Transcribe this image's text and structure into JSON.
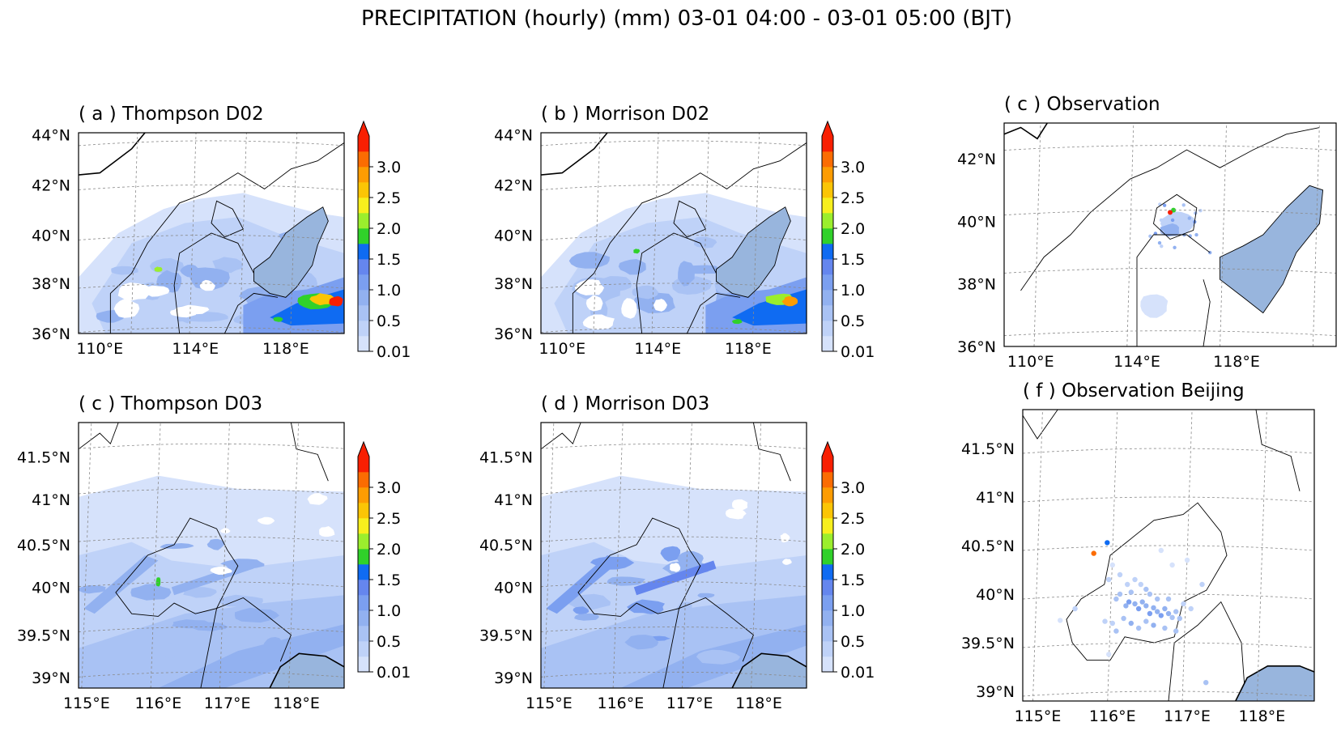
{
  "figure": {
    "title": "PRECIPITATION (hourly) (mm) 03-01 04:00 - 03-01 05:00 (BJT)"
  },
  "colors": {
    "water": "#98b5dd",
    "levels": [
      "#d6e2fb",
      "#bfd2f8",
      "#a9c2f4",
      "#92b1f0",
      "#7b9ff0",
      "#6586ee",
      "#0f6bf2",
      "#30d12a",
      "#9bee2d",
      "#f7ef1d",
      "#fbc505",
      "#fd9c02",
      "#fb6c02",
      "#f81f02"
    ]
  },
  "colorbar": {
    "ticks": [
      "0.01",
      "0.5",
      "1.0",
      "1.5",
      "2.0",
      "2.5",
      "3.0"
    ]
  },
  "chart_data": [
    {
      "id": "a",
      "type": "heatmap",
      "title": "( a ) Thompson D02",
      "x_ticks": [
        "110°E",
        "114°E",
        "118°E"
      ],
      "y_ticks": [
        "36°N",
        "38°N",
        "40°N",
        "42°N",
        "44°N"
      ],
      "xlim": [
        108,
        124
      ],
      "ylim": [
        36,
        44
      ],
      "levels_mm": [
        0.01,
        0.25,
        0.5,
        0.75,
        1.0,
        1.25,
        1.5,
        1.75,
        2.0,
        2.25,
        2.5,
        2.75,
        3.0
      ],
      "extend": "max",
      "grid": true
    },
    {
      "id": "b",
      "type": "heatmap",
      "title": "( b ) Morrison D02",
      "x_ticks": [
        "110°E",
        "114°E",
        "118°E"
      ],
      "y_ticks": [
        "36°N",
        "38°N",
        "40°N",
        "42°N",
        "44°N"
      ],
      "xlim": [
        108,
        124
      ],
      "ylim": [
        36,
        44
      ],
      "levels_mm": [
        0.01,
        0.25,
        0.5,
        0.75,
        1.0,
        1.25,
        1.5,
        1.75,
        2.0,
        2.25,
        2.5,
        2.75,
        3.0
      ],
      "extend": "max",
      "grid": true
    },
    {
      "id": "c_obs",
      "type": "scatter",
      "title": "( c ) Observation",
      "x_ticks": [
        "110°E",
        "114°E",
        "118°E"
      ],
      "y_ticks": [
        "36°N",
        "38°N",
        "40°N",
        "42°N"
      ],
      "xlim": [
        108,
        124
      ],
      "ylim": [
        36,
        43
      ],
      "grid": true
    },
    {
      "id": "c",
      "type": "heatmap",
      "title": "( c ) Thompson D03",
      "x_ticks": [
        "115°E",
        "116°E",
        "117°E",
        "118°E"
      ],
      "y_ticks": [
        "39°N",
        "39.5°N",
        "40°N",
        "40.5°N",
        "41°N",
        "41.5°N"
      ],
      "xlim": [
        114.8,
        118.7
      ],
      "ylim": [
        38.9,
        41.9
      ],
      "levels_mm": [
        0.01,
        0.25,
        0.5,
        0.75,
        1.0,
        1.25,
        1.5,
        1.75,
        2.0,
        2.25,
        2.5,
        2.75,
        3.0
      ],
      "extend": "max",
      "grid": true
    },
    {
      "id": "d",
      "type": "heatmap",
      "title": "( d ) Morrison D03",
      "x_ticks": [
        "115°E",
        "116°E",
        "117°E",
        "118°E"
      ],
      "y_ticks": [
        "39°N",
        "39.5°N",
        "40°N",
        "40.5°N",
        "41°N",
        "41.5°N"
      ],
      "xlim": [
        114.8,
        118.7
      ],
      "ylim": [
        38.9,
        41.9
      ],
      "levels_mm": [
        0.01,
        0.25,
        0.5,
        0.75,
        1.0,
        1.25,
        1.5,
        1.75,
        2.0,
        2.25,
        2.5,
        2.75,
        3.0
      ],
      "extend": "max",
      "grid": true
    },
    {
      "id": "f",
      "type": "scatter",
      "title": "( f ) Observation Beijing",
      "x_ticks": [
        "115°E",
        "116°E",
        "117°E",
        "118°E"
      ],
      "y_ticks": [
        "39°N",
        "39.5°N",
        "40°N",
        "40.5°N",
        "41°N",
        "41.5°N"
      ],
      "xlim": [
        114.8,
        118.7
      ],
      "ylim": [
        38.9,
        41.9
      ],
      "grid": true,
      "stations": [
        {
          "lon": 115.75,
          "lat": 40.42,
          "mm": 3.0
        },
        {
          "lon": 115.93,
          "lat": 40.53,
          "mm": 1.7
        },
        {
          "lon": 116.05,
          "lat": 39.95,
          "mm": 0.5
        },
        {
          "lon": 116.1,
          "lat": 40.0,
          "mm": 0.6
        },
        {
          "lon": 116.18,
          "lat": 39.88,
          "mm": 0.8
        },
        {
          "lon": 116.22,
          "lat": 39.92,
          "mm": 1.0
        },
        {
          "lon": 116.3,
          "lat": 39.9,
          "mm": 0.9
        },
        {
          "lon": 116.35,
          "lat": 39.85,
          "mm": 1.0
        },
        {
          "lon": 116.4,
          "lat": 39.92,
          "mm": 0.8
        },
        {
          "lon": 116.45,
          "lat": 39.88,
          "mm": 0.9
        },
        {
          "lon": 116.5,
          "lat": 39.8,
          "mm": 1.0
        },
        {
          "lon": 116.55,
          "lat": 39.86,
          "mm": 0.8
        },
        {
          "lon": 116.6,
          "lat": 39.82,
          "mm": 0.9
        },
        {
          "lon": 116.65,
          "lat": 39.78,
          "mm": 1.0
        },
        {
          "lon": 116.7,
          "lat": 39.85,
          "mm": 0.8
        },
        {
          "lon": 116.75,
          "lat": 39.8,
          "mm": 0.9
        },
        {
          "lon": 116.8,
          "lat": 39.76,
          "mm": 0.7
        },
        {
          "lon": 116.85,
          "lat": 39.82,
          "mm": 0.6
        },
        {
          "lon": 116.9,
          "lat": 39.75,
          "mm": 0.6
        },
        {
          "lon": 116.6,
          "lat": 39.95,
          "mm": 0.7
        },
        {
          "lon": 116.45,
          "lat": 40.05,
          "mm": 0.5
        },
        {
          "lon": 116.38,
          "lat": 40.1,
          "mm": 0.4
        },
        {
          "lon": 116.3,
          "lat": 40.15,
          "mm": 0.3
        },
        {
          "lon": 116.2,
          "lat": 40.1,
          "mm": 0.4
        },
        {
          "lon": 116.1,
          "lat": 40.2,
          "mm": 0.3
        },
        {
          "lon": 116.0,
          "lat": 40.3,
          "mm": 0.2
        },
        {
          "lon": 115.95,
          "lat": 40.15,
          "mm": 0.3
        },
        {
          "lon": 116.15,
          "lat": 39.75,
          "mm": 0.7
        },
        {
          "lon": 116.25,
          "lat": 39.7,
          "mm": 0.8
        },
        {
          "lon": 116.35,
          "lat": 39.65,
          "mm": 0.6
        },
        {
          "lon": 116.45,
          "lat": 39.72,
          "mm": 0.7
        },
        {
          "lon": 116.55,
          "lat": 39.68,
          "mm": 0.8
        },
        {
          "lon": 116.7,
          "lat": 39.65,
          "mm": 0.7
        },
        {
          "lon": 116.85,
          "lat": 39.62,
          "mm": 0.5
        },
        {
          "lon": 116.0,
          "lat": 39.7,
          "mm": 0.4
        },
        {
          "lon": 115.9,
          "lat": 39.72,
          "mm": 0.3
        },
        {
          "lon": 116.05,
          "lat": 39.62,
          "mm": 0.6
        },
        {
          "lon": 116.95,
          "lat": 39.9,
          "mm": 0.4
        },
        {
          "lon": 117.05,
          "lat": 39.85,
          "mm": 0.3
        },
        {
          "lon": 117.2,
          "lat": 40.1,
          "mm": 0.3
        },
        {
          "lon": 117.0,
          "lat": 40.35,
          "mm": 0.2
        },
        {
          "lon": 116.8,
          "lat": 40.3,
          "mm": 0.2
        },
        {
          "lon": 116.65,
          "lat": 40.45,
          "mm": 0.2
        },
        {
          "lon": 115.3,
          "lat": 39.73,
          "mm": 0.2
        },
        {
          "lon": 115.5,
          "lat": 39.85,
          "mm": 0.3
        },
        {
          "lon": 115.95,
          "lat": 39.38,
          "mm": 0.2
        },
        {
          "lon": 117.25,
          "lat": 39.09,
          "mm": 0.5
        },
        {
          "lon": 116.5,
          "lat": 40.0,
          "mm": 0.5
        },
        {
          "lon": 116.25,
          "lat": 40.02,
          "mm": 0.6
        },
        {
          "lon": 116.75,
          "lat": 39.95,
          "mm": 0.6
        }
      ]
    }
  ]
}
